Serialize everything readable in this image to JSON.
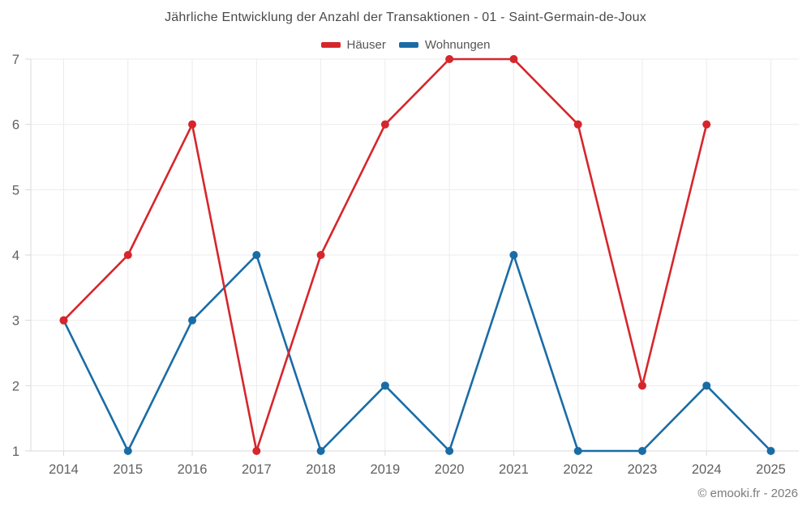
{
  "title": "Jährliche Entwicklung der Anzahl der Transaktionen - 01 - Saint-Germain-de-Joux",
  "footer": "© emooki.fr - 2026",
  "colors": {
    "haeuser_red": "#d6262c",
    "wohnungen_blue": "#1a6ca5",
    "grid": "#ebebeb",
    "axis": "#d9d9d9",
    "tick_label": "#616161"
  },
  "chart_data": {
    "type": "line",
    "categories": [
      "2014",
      "2015",
      "2016",
      "2017",
      "2018",
      "2019",
      "2020",
      "2021",
      "2022",
      "2023",
      "2024",
      "2025"
    ],
    "series": [
      {
        "name": "Häuser",
        "color": "#d6262c",
        "values": [
          3,
          4,
          6,
          1,
          4,
          6,
          7,
          7,
          6,
          2,
          6,
          null
        ]
      },
      {
        "name": "Wohnungen",
        "color": "#1a6ca5",
        "values": [
          3,
          1,
          3,
          4,
          1,
          2,
          1,
          4,
          1,
          1,
          2,
          1
        ]
      }
    ],
    "title": "Jährliche Entwicklung der Anzahl der Transaktionen - 01 - Saint-Germain-de-Joux",
    "xlabel": "",
    "ylabel": "",
    "ylim": [
      1,
      7
    ],
    "yticks": [
      1,
      2,
      3,
      4,
      5,
      6,
      7
    ],
    "grid": true,
    "legend_position": "top"
  }
}
